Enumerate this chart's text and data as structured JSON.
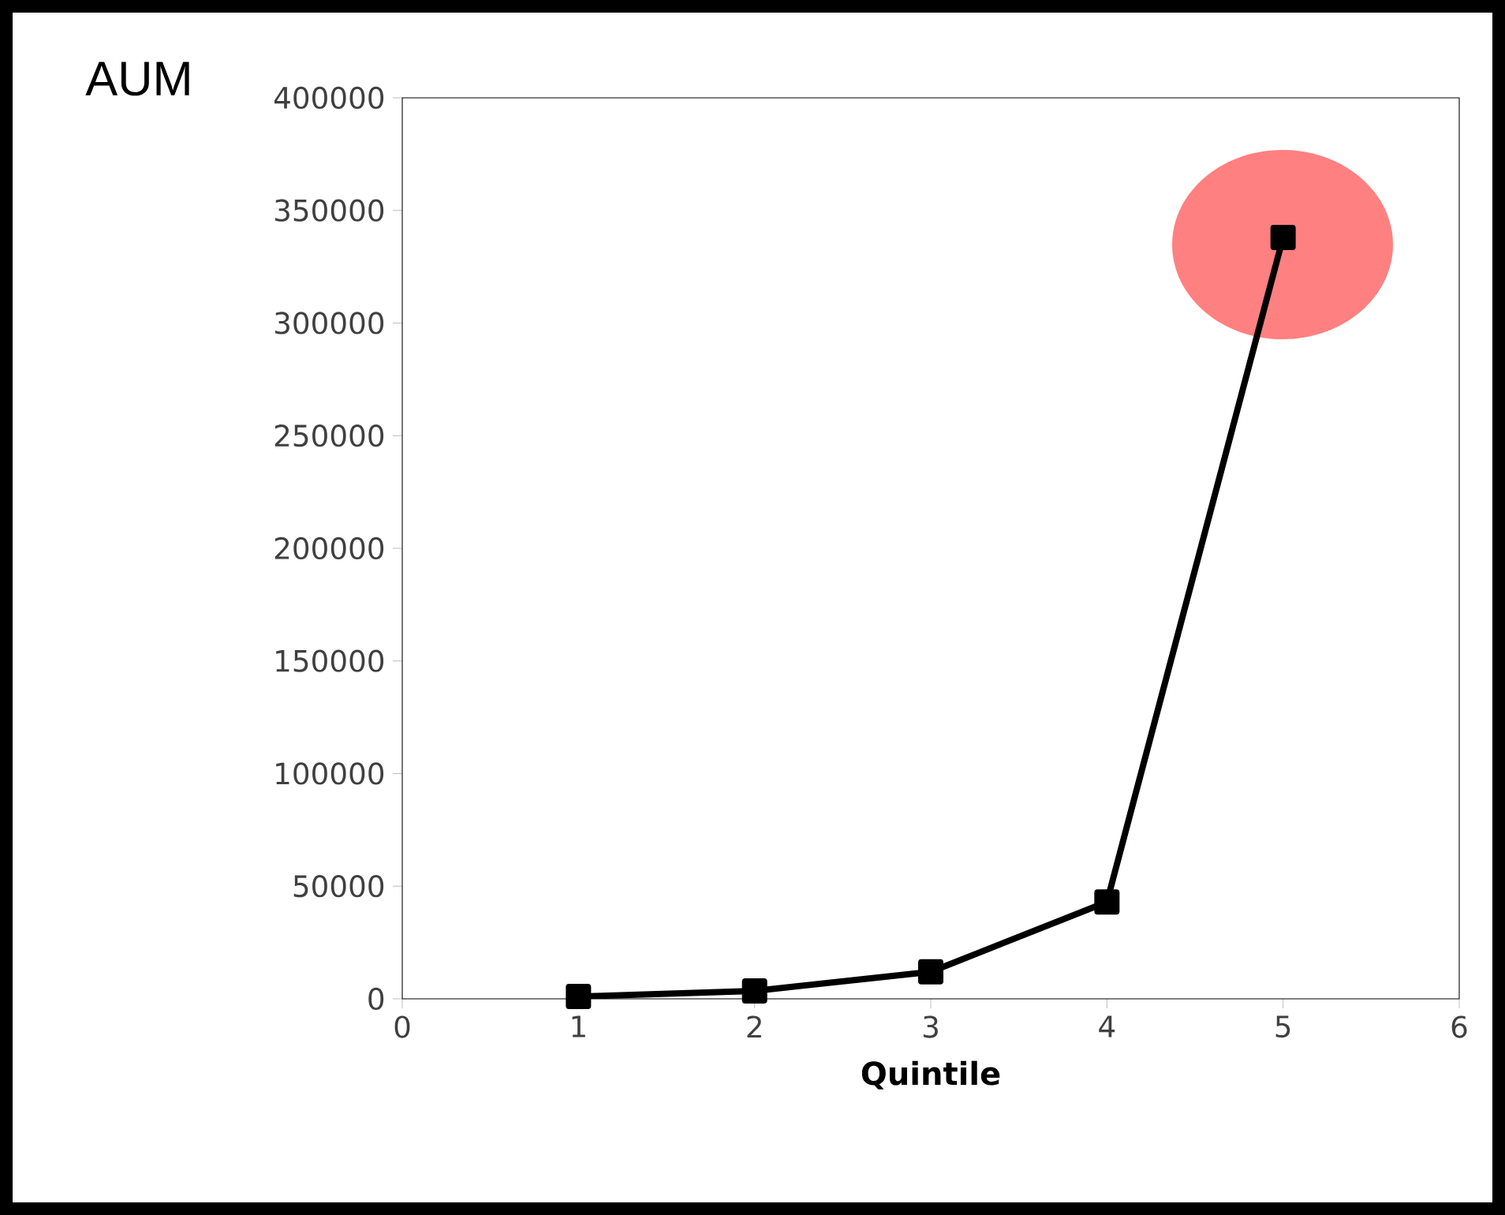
{
  "chart_data": {
    "type": "line",
    "xlabel": "Quintile",
    "ylabel": "AUM",
    "x": [
      1,
      2,
      3,
      4,
      5
    ],
    "values": [
      1000,
      3500,
      12000,
      43000,
      338000
    ],
    "color": "#000000",
    "marker": "square",
    "xlim": [
      0,
      6
    ],
    "xticks": [
      0,
      1,
      2,
      3,
      4,
      5,
      6
    ],
    "ylim": [
      0,
      400000
    ],
    "yticks": [
      0,
      50000,
      100000,
      150000,
      200000,
      250000,
      300000,
      350000,
      400000
    ]
  }
}
